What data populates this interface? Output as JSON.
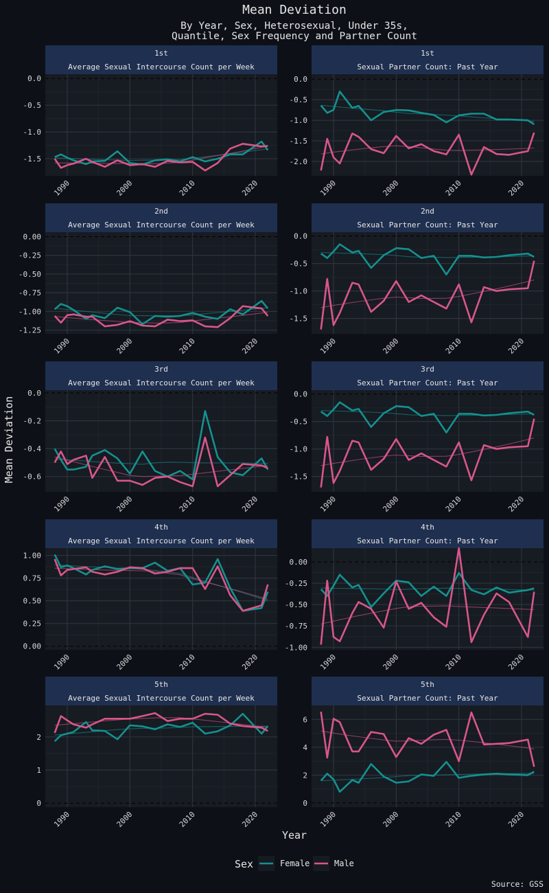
{
  "header": {
    "title": "Mean Deviation",
    "subtitle_line1": "By Year, Sex, Heterosexual, Under 35s,",
    "subtitle_line2": "Quantile, Sex Frequency and Partner Count"
  },
  "axes": {
    "ylabel": "Mean Deviation",
    "xlabel": "Year"
  },
  "legend": {
    "title": "Sex",
    "items": [
      "Female",
      "Male"
    ]
  },
  "source": "Source: GSS",
  "colors": {
    "Female": "#14918f",
    "Male": "#d8578a",
    "background": "#0d1117",
    "panel": "#171b22",
    "strip": "#1f2f4f"
  },
  "chart_data": [
    {
      "type": "line",
      "quantile": "1st",
      "measure": "Average Sexual Intercourse Count per Week",
      "x": [
        1988,
        1989,
        1990,
        1991,
        1993,
        1994,
        1996,
        1998,
        2000,
        2002,
        2004,
        2006,
        2008,
        2010,
        2012,
        2014,
        2016,
        2018,
        2021,
        2022
      ],
      "xlim": [
        1986.5,
        2023.5
      ],
      "xticks": [
        1990,
        2000,
        2010,
        2020
      ],
      "ylim": [
        -1.82,
        0.08
      ],
      "yticks": [
        0.0,
        -0.5,
        -1.0,
        -1.5
      ],
      "ytick_labels": [
        "0.0",
        "-0.5",
        "-1.0",
        "-1.5"
      ],
      "series": [
        {
          "name": "Female",
          "values": [
            -1.47,
            -1.42,
            -1.48,
            -1.53,
            -1.6,
            -1.55,
            -1.54,
            -1.36,
            -1.58,
            -1.61,
            -1.53,
            -1.51,
            -1.55,
            -1.47,
            -1.55,
            -1.5,
            -1.42,
            -1.42,
            -1.18,
            -1.34
          ]
        },
        {
          "name": "Male",
          "values": [
            -1.5,
            -1.67,
            -1.62,
            -1.59,
            -1.5,
            -1.56,
            -1.65,
            -1.53,
            -1.62,
            -1.6,
            -1.65,
            -1.54,
            -1.57,
            -1.56,
            -1.72,
            -1.58,
            -1.31,
            -1.22,
            -1.27,
            -1.26
          ]
        }
      ]
    },
    {
      "type": "line",
      "quantile": "1st",
      "measure": "Sexual Partner Count: Past Year",
      "x": [
        1988,
        1989,
        1990,
        1991,
        1993,
        1994,
        1996,
        1998,
        2000,
        2002,
        2004,
        2006,
        2008,
        2010,
        2012,
        2014,
        2016,
        2018,
        2021,
        2022
      ],
      "xlim": [
        1986.5,
        2023.5
      ],
      "xticks": [
        1990,
        2000,
        2010,
        2020
      ],
      "ylim": [
        -2.35,
        0.12
      ],
      "yticks": [
        0.0,
        -0.5,
        -1.0,
        -1.5,
        -2.0
      ],
      "ytick_labels": [
        "0.0",
        "-0.5",
        "-1.0",
        "-1.5",
        "-2.0"
      ],
      "series": [
        {
          "name": "Female",
          "values": [
            -0.64,
            -0.82,
            -0.75,
            -0.3,
            -0.7,
            -0.65,
            -1.0,
            -0.8,
            -0.75,
            -0.76,
            -0.82,
            -0.87,
            -1.05,
            -0.88,
            -0.84,
            -0.84,
            -0.98,
            -0.98,
            -1.0,
            -1.1
          ]
        },
        {
          "name": "Male",
          "values": [
            -2.22,
            -1.45,
            -1.9,
            -2.05,
            -1.32,
            -1.4,
            -1.7,
            -1.8,
            -1.38,
            -1.68,
            -1.58,
            -1.75,
            -1.83,
            -1.35,
            -2.32,
            -1.65,
            -1.82,
            -1.84,
            -1.75,
            -1.3
          ]
        }
      ]
    },
    {
      "type": "line",
      "quantile": "2nd",
      "measure": "Average Sexual Intercourse Count per Week",
      "x": [
        1988,
        1989,
        1990,
        1991,
        1993,
        1994,
        1996,
        1998,
        2000,
        2002,
        2004,
        2006,
        2008,
        2010,
        2012,
        2014,
        2016,
        2018,
        2021,
        2022
      ],
      "xlim": [
        1986.5,
        2023.5
      ],
      "xticks": [
        1990,
        2000,
        2010,
        2020
      ],
      "ylim": [
        -1.3,
        0.06
      ],
      "yticks": [
        0.0,
        -0.25,
        -0.5,
        -0.75,
        -1.0,
        -1.25
      ],
      "ytick_labels": [
        "0.00",
        "-0.25",
        "-0.50",
        "-0.75",
        "-1.00",
        "-1.25"
      ],
      "series": [
        {
          "name": "Female",
          "values": [
            -0.97,
            -0.9,
            -0.93,
            -0.98,
            -1.1,
            -1.05,
            -1.09,
            -0.95,
            -1.01,
            -1.17,
            -1.06,
            -1.07,
            -1.06,
            -1.02,
            -1.07,
            -1.1,
            -0.97,
            -1.04,
            -0.86,
            -0.96
          ]
        },
        {
          "name": "Male",
          "values": [
            -1.06,
            -1.15,
            -1.05,
            -1.04,
            -1.07,
            -1.07,
            -1.2,
            -1.18,
            -1.13,
            -1.19,
            -1.2,
            -1.11,
            -1.13,
            -1.12,
            -1.2,
            -1.21,
            -1.09,
            -0.93,
            -0.96,
            -1.06
          ]
        }
      ]
    },
    {
      "type": "line",
      "quantile": "2nd",
      "measure": "Sexual Partner Count: Past Year",
      "x": [
        1988,
        1989,
        1990,
        1991,
        1993,
        1994,
        1996,
        1998,
        2000,
        2002,
        2004,
        2006,
        2008,
        2010,
        2012,
        2014,
        2016,
        2018,
        2021,
        2022
      ],
      "xlim": [
        1986.5,
        2023.5
      ],
      "xticks": [
        1990,
        2000,
        2010,
        2020
      ],
      "ylim": [
        -1.78,
        0.07
      ],
      "yticks": [
        0.0,
        -0.5,
        -1.0,
        -1.5
      ],
      "ytick_labels": [
        "0.0",
        "-0.5",
        "-1.0",
        "-1.5"
      ],
      "series": [
        {
          "name": "Female",
          "values": [
            -0.32,
            -0.4,
            -0.28,
            -0.15,
            -0.3,
            -0.27,
            -0.58,
            -0.35,
            -0.22,
            -0.24,
            -0.4,
            -0.36,
            -0.7,
            -0.36,
            -0.36,
            -0.39,
            -0.38,
            -0.35,
            -0.32,
            -0.38
          ]
        },
        {
          "name": "Male",
          "values": [
            -1.7,
            -0.78,
            -1.62,
            -1.4,
            -0.85,
            -0.88,
            -1.38,
            -1.18,
            -0.82,
            -1.2,
            -1.08,
            -1.2,
            -1.32,
            -0.88,
            -1.57,
            -0.93,
            -1.0,
            -0.97,
            -0.95,
            -0.45
          ]
        }
      ]
    },
    {
      "type": "line",
      "quantile": "3rd",
      "measure": "Average Sexual Intercourse Count per Week",
      "x": [
        1988,
        1989,
        1990,
        1991,
        1993,
        1994,
        1996,
        1998,
        2000,
        2002,
        2004,
        2006,
        2008,
        2010,
        2012,
        2014,
        2016,
        2018,
        2021,
        2022
      ],
      "xlim": [
        1986.5,
        2023.5
      ],
      "xticks": [
        1990,
        2000,
        2010,
        2020
      ],
      "ylim": [
        -0.71,
        0.02
      ],
      "yticks": [
        0.0,
        -0.2,
        -0.4,
        -0.6
      ],
      "ytick_labels": [
        "0.0",
        "-0.2",
        "-0.4",
        "-0.6"
      ],
      "series": [
        {
          "name": "Female",
          "values": [
            -0.4,
            -0.48,
            -0.55,
            -0.55,
            -0.53,
            -0.45,
            -0.41,
            -0.47,
            -0.58,
            -0.42,
            -0.56,
            -0.6,
            -0.56,
            -0.62,
            -0.13,
            -0.46,
            -0.57,
            -0.59,
            -0.47,
            -0.55
          ]
        },
        {
          "name": "Male",
          "values": [
            -0.5,
            -0.42,
            -0.51,
            -0.48,
            -0.45,
            -0.61,
            -0.46,
            -0.63,
            -0.63,
            -0.66,
            -0.61,
            -0.6,
            -0.64,
            -0.67,
            -0.32,
            -0.67,
            -0.59,
            -0.51,
            -0.52,
            -0.54
          ]
        }
      ]
    },
    {
      "type": "line",
      "quantile": "3rd",
      "measure": "Sexual Partner Count: Past Year",
      "x": [
        1988,
        1989,
        1990,
        1991,
        1993,
        1994,
        1996,
        1998,
        2000,
        2002,
        2004,
        2006,
        2008,
        2010,
        2012,
        2014,
        2016,
        2018,
        2021,
        2022
      ],
      "xlim": [
        1986.5,
        2023.5
      ],
      "xticks": [
        1990,
        2000,
        2010,
        2020
      ],
      "ylim": [
        -1.78,
        0.07
      ],
      "yticks": [
        0.0,
        -0.5,
        -1.0,
        -1.5
      ],
      "ytick_labels": [
        "0.0",
        "-0.5",
        "-1.0",
        "-1.5"
      ],
      "series": [
        {
          "name": "Female",
          "values": [
            -0.32,
            -0.4,
            -0.28,
            -0.15,
            -0.3,
            -0.27,
            -0.6,
            -0.35,
            -0.22,
            -0.24,
            -0.4,
            -0.36,
            -0.7,
            -0.36,
            -0.36,
            -0.39,
            -0.38,
            -0.35,
            -0.32,
            -0.38
          ]
        },
        {
          "name": "Male",
          "values": [
            -1.7,
            -0.78,
            -1.62,
            -1.4,
            -0.85,
            -0.88,
            -1.38,
            -1.18,
            -0.82,
            -1.2,
            -1.08,
            -1.2,
            -1.32,
            -0.88,
            -1.57,
            -0.93,
            -1.0,
            -0.97,
            -0.95,
            -0.45
          ]
        }
      ]
    },
    {
      "type": "line",
      "quantile": "4th",
      "measure": "Average Sexual Intercourse Count per Week",
      "x": [
        1988,
        1989,
        1990,
        1991,
        1993,
        1994,
        1996,
        1998,
        2000,
        2002,
        2004,
        2006,
        2008,
        2010,
        2012,
        2014,
        2016,
        2018,
        2021,
        2022
      ],
      "xlim": [
        1986.5,
        2023.5
      ],
      "xticks": [
        1990,
        2000,
        2010,
        2020
      ],
      "ylim": [
        -0.04,
        1.08
      ],
      "yticks": [
        1.0,
        0.75,
        0.5,
        0.25,
        0.0
      ],
      "ytick_labels": [
        "1.00",
        "0.75",
        "0.50",
        "0.25",
        "0.00"
      ],
      "series": [
        {
          "name": "Female",
          "values": [
            1.01,
            0.87,
            0.89,
            0.86,
            0.79,
            0.84,
            0.88,
            0.85,
            0.86,
            0.86,
            0.92,
            0.83,
            0.86,
            0.68,
            0.7,
            0.96,
            0.64,
            0.39,
            0.42,
            0.6
          ]
        },
        {
          "name": "Male",
          "values": [
            0.96,
            0.78,
            0.84,
            0.85,
            0.87,
            0.82,
            0.79,
            0.82,
            0.87,
            0.86,
            0.8,
            0.82,
            0.86,
            0.86,
            0.63,
            0.88,
            0.56,
            0.39,
            0.45,
            0.68
          ]
        }
      ]
    },
    {
      "type": "line",
      "quantile": "4th",
      "measure": "Sexual Partner Count: Past Year",
      "x": [
        1988,
        1989,
        1990,
        1991,
        1993,
        1994,
        1996,
        1998,
        2000,
        2002,
        2004,
        2006,
        2008,
        2010,
        2012,
        2014,
        2016,
        2018,
        2021,
        2022
      ],
      "xlim": [
        1986.5,
        2023.5
      ],
      "xticks": [
        1990,
        2000,
        2010,
        2020
      ],
      "ylim": [
        -1.03,
        0.16
      ],
      "yticks": [
        0.0,
        -0.25,
        -0.5,
        -0.75,
        -1.0
      ],
      "ytick_labels": [
        "0.00",
        "-0.25",
        "-0.50",
        "-0.75",
        "-1.00"
      ],
      "series": [
        {
          "name": "Female",
          "values": [
            -0.32,
            -0.4,
            -0.28,
            -0.15,
            -0.3,
            -0.27,
            -0.53,
            -0.37,
            -0.22,
            -0.24,
            -0.4,
            -0.29,
            -0.4,
            -0.13,
            -0.33,
            -0.38,
            -0.3,
            -0.36,
            -0.33,
            -0.31
          ]
        },
        {
          "name": "Male",
          "values": [
            -0.97,
            -0.22,
            -0.88,
            -0.93,
            -0.6,
            -0.47,
            -0.55,
            -0.77,
            -0.23,
            -0.55,
            -0.48,
            -0.65,
            -0.76,
            0.16,
            -0.94,
            -0.62,
            -0.37,
            -0.47,
            -0.88,
            -0.35
          ]
        }
      ]
    },
    {
      "type": "line",
      "quantile": "5th",
      "measure": "Average Sexual Intercourse Count per Week",
      "x": [
        1988,
        1989,
        1990,
        1991,
        1993,
        1994,
        1996,
        1998,
        2000,
        2002,
        2004,
        2006,
        2008,
        2010,
        2012,
        2014,
        2016,
        2018,
        2021,
        2022
      ],
      "xlim": [
        1986.5,
        2023.5
      ],
      "xticks": [
        1990,
        2000,
        2010,
        2020
      ],
      "ylim": [
        -0.12,
        2.95
      ],
      "yticks": [
        2,
        1,
        0
      ],
      "ytick_labels": [
        "2",
        "1",
        "0"
      ],
      "series": [
        {
          "name": "Female",
          "values": [
            1.87,
            2.05,
            2.1,
            2.15,
            2.45,
            2.2,
            2.18,
            1.93,
            2.35,
            2.32,
            2.23,
            2.38,
            2.3,
            2.43,
            2.1,
            2.17,
            2.35,
            2.7,
            2.1,
            2.33
          ]
        },
        {
          "name": "Male",
          "values": [
            2.12,
            2.63,
            2.5,
            2.38,
            2.28,
            2.38,
            2.55,
            2.55,
            2.55,
            2.63,
            2.72,
            2.48,
            2.55,
            2.55,
            2.7,
            2.67,
            2.4,
            2.33,
            2.28,
            2.18
          ]
        }
      ]
    },
    {
      "type": "line",
      "quantile": "5th",
      "measure": "Sexual Partner Count: Past Year",
      "x": [
        1988,
        1989,
        1990,
        1991,
        1993,
        1994,
        1996,
        1998,
        2000,
        2002,
        2004,
        2006,
        2008,
        2010,
        2012,
        2014,
        2016,
        2018,
        2021,
        2022
      ],
      "xlim": [
        1986.5,
        2023.5
      ],
      "xticks": [
        1990,
        2000,
        2010,
        2020
      ],
      "ylim": [
        -0.3,
        7.0
      ],
      "yticks": [
        6,
        4,
        2,
        0
      ],
      "ytick_labels": [
        "6",
        "4",
        "2",
        "0"
      ],
      "series": [
        {
          "name": "Female",
          "values": [
            1.6,
            2.1,
            1.7,
            0.8,
            1.65,
            1.45,
            2.8,
            1.9,
            1.45,
            1.55,
            2.05,
            1.95,
            2.95,
            1.8,
            1.95,
            2.05,
            2.1,
            2.05,
            2.0,
            2.25
          ]
        },
        {
          "name": "Male",
          "values": [
            6.55,
            3.25,
            6.05,
            5.8,
            3.7,
            3.7,
            5.1,
            4.95,
            3.3,
            4.65,
            4.25,
            4.9,
            5.25,
            3.0,
            6.5,
            4.2,
            4.25,
            4.3,
            4.55,
            2.6
          ]
        }
      ]
    }
  ]
}
